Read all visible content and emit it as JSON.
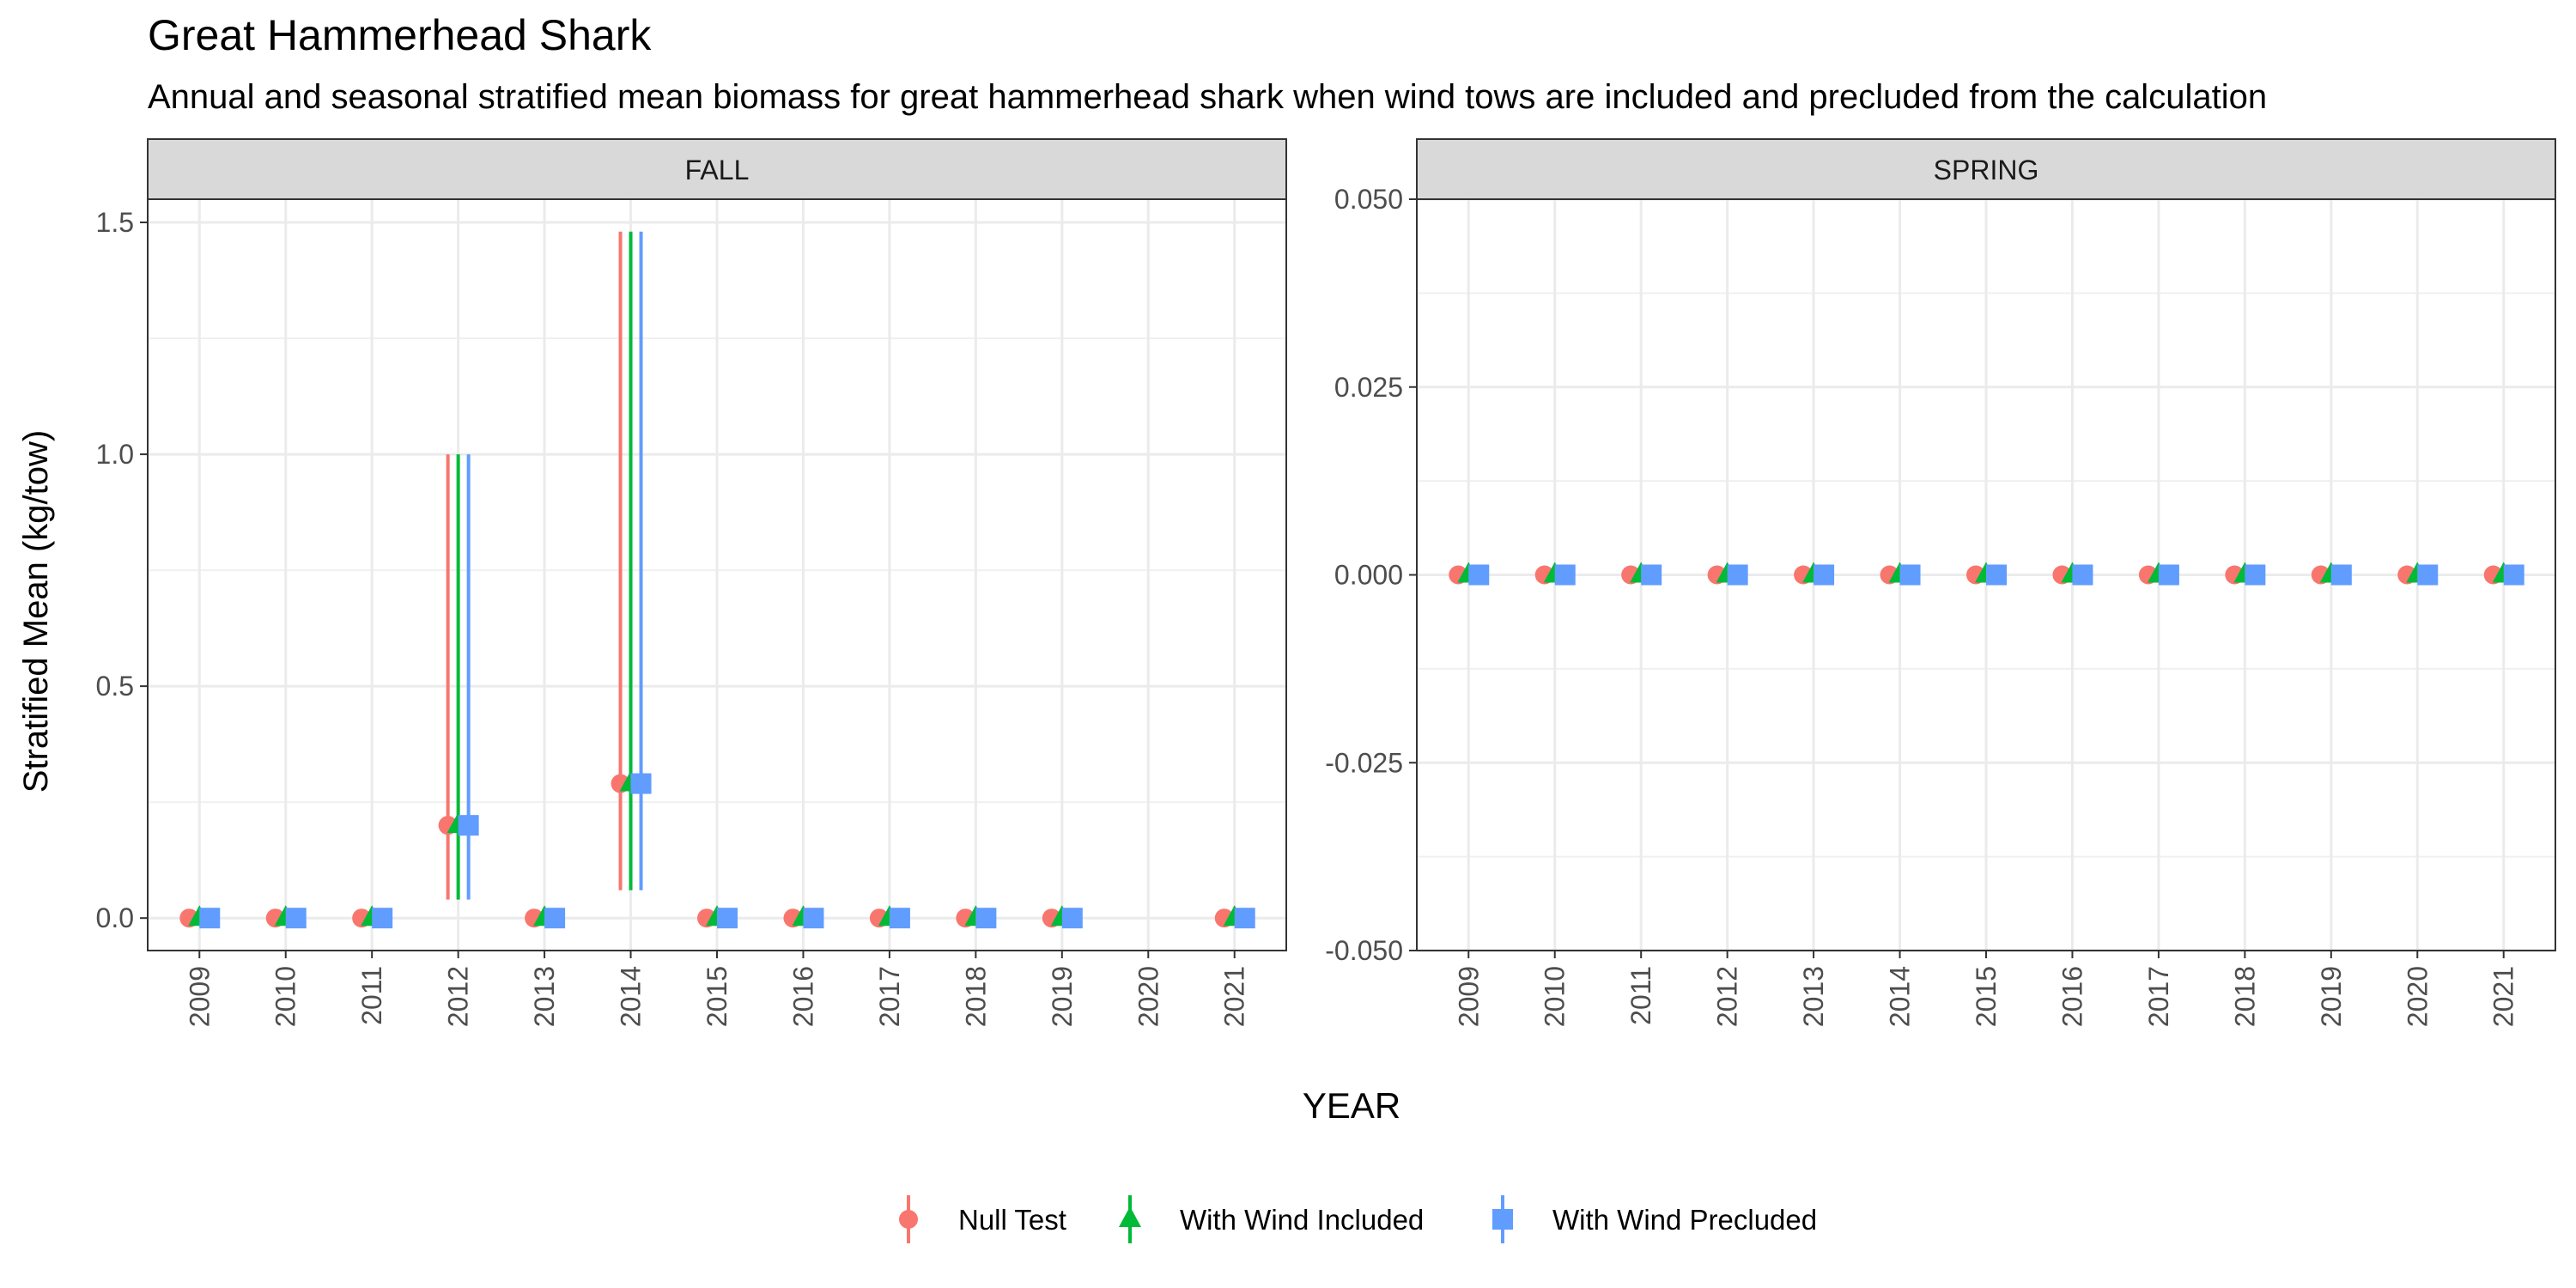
{
  "title": "Great Hammerhead Shark",
  "subtitle": "Annual and seasonal stratified mean biomass for great hammerhead shark when wind tows are included and precluded from the calculation",
  "y_axis_label": "Stratified Mean (kg/tow)",
  "x_axis_label": "YEAR",
  "legend": [
    {
      "key": "null",
      "label": "Null Test",
      "color": "#F8766D",
      "shape": "circle"
    },
    {
      "key": "incl",
      "label": "With Wind Included",
      "color": "#00BA38",
      "shape": "triangle"
    },
    {
      "key": "precl",
      "label": "With Wind Precluded",
      "color": "#619CFF",
      "shape": "square"
    }
  ],
  "chart_data": [
    {
      "type": "scatter",
      "panel": "FALL",
      "categories": [
        "2009",
        "2010",
        "2011",
        "2012",
        "2013",
        "2014",
        "2015",
        "2016",
        "2017",
        "2018",
        "2019",
        "2020",
        "2021"
      ],
      "ylim": [
        -0.07,
        1.55
      ],
      "y_ticks": [
        0.0,
        0.5,
        1.0,
        1.5
      ],
      "y_tick_labels": [
        "0.0",
        "0.5",
        "1.0",
        "1.5"
      ],
      "series": [
        {
          "name": "Null Test",
          "key": "null",
          "values": [
            0,
            0,
            0,
            0.2,
            0,
            0.29,
            0,
            0,
            0,
            0,
            0,
            null,
            0
          ],
          "lower": [
            null,
            null,
            null,
            0.04,
            null,
            0.06,
            null,
            null,
            null,
            null,
            null,
            null,
            null
          ],
          "upper": [
            null,
            null,
            null,
            1.0,
            null,
            1.48,
            null,
            null,
            null,
            null,
            null,
            null,
            null
          ]
        },
        {
          "name": "With Wind Included",
          "key": "incl",
          "values": [
            0,
            0,
            0,
            0.2,
            0,
            0.29,
            0,
            0,
            0,
            0,
            0,
            null,
            0
          ],
          "lower": [
            null,
            null,
            null,
            0.04,
            null,
            0.06,
            null,
            null,
            null,
            null,
            null,
            null,
            null
          ],
          "upper": [
            null,
            null,
            null,
            1.0,
            null,
            1.48,
            null,
            null,
            null,
            null,
            null,
            null,
            null
          ]
        },
        {
          "name": "With Wind Precluded",
          "key": "precl",
          "values": [
            0,
            0,
            0,
            0.2,
            0,
            0.29,
            0,
            0,
            0,
            0,
            0,
            null,
            0
          ],
          "lower": [
            null,
            null,
            null,
            0.04,
            null,
            0.06,
            null,
            null,
            null,
            null,
            null,
            null,
            null
          ],
          "upper": [
            null,
            null,
            null,
            1.0,
            null,
            1.48,
            null,
            null,
            null,
            null,
            null,
            null,
            null
          ]
        }
      ]
    },
    {
      "type": "scatter",
      "panel": "SPRING",
      "categories": [
        "2009",
        "2010",
        "2011",
        "2012",
        "2013",
        "2014",
        "2015",
        "2016",
        "2017",
        "2018",
        "2019",
        "2020",
        "2021"
      ],
      "ylim": [
        -0.05,
        0.05
      ],
      "y_ticks": [
        -0.05,
        -0.025,
        0.0,
        0.025,
        0.05
      ],
      "y_tick_labels": [
        "-0.050",
        "-0.025",
        "0.000",
        "0.025",
        "0.050"
      ],
      "series": [
        {
          "name": "Null Test",
          "key": "null",
          "values": [
            0,
            0,
            0,
            0,
            0,
            0,
            0,
            0,
            0,
            0,
            0,
            0,
            0
          ]
        },
        {
          "name": "With Wind Included",
          "key": "incl",
          "values": [
            0,
            0,
            0,
            0,
            0,
            0,
            0,
            0,
            0,
            0,
            0,
            0,
            0
          ]
        },
        {
          "name": "With Wind Precluded",
          "key": "precl",
          "values": [
            0,
            0,
            0,
            0,
            0,
            0,
            0,
            0,
            0,
            0,
            0,
            0,
            0
          ]
        }
      ]
    }
  ]
}
